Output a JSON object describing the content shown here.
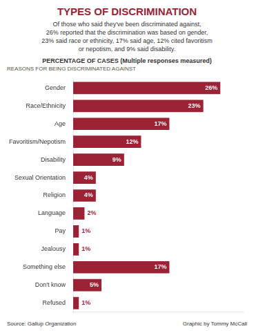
{
  "chart_data": {
    "type": "bar",
    "orientation": "horizontal",
    "title": "TYPES OF DISCRIMINATION",
    "subtitle": "Of those who said they've been discriminated against,\n26% reported that the discrimination was based on gender,\n23% said race or ethnicity, 17% said age, 12% cited favoritism\nor nepotism, and 9% said disability.",
    "ylabel": "REASONS FOR BEING DISCRIMINATED AGAINST",
    "annotations": [
      "PERCENTAGE OF CASES (Multiple responses measured)",
      "Source: Gallup Organization",
      "Graphic by Tommy McCall"
    ],
    "categories": [
      "Gender",
      "Race/Ethnicity",
      "Age",
      "Favoritism/Nepotism",
      "Disability",
      "Sexual Orientation",
      "Religion",
      "Language",
      "Pay",
      "Jealousy",
      "Something else",
      "Don't know",
      "Refused"
    ],
    "values": [
      26,
      23,
      17,
      12,
      9,
      4,
      4,
      2,
      1,
      1,
      17,
      5,
      1
    ],
    "value_labels": [
      "26%",
      "23%",
      "17%",
      "12%",
      "9%",
      "4%",
      "4%",
      "2%",
      "1%",
      "1%",
      "17%",
      "5%",
      "1%"
    ],
    "color": "#9B2335",
    "xlim": [
      0,
      30
    ],
    "grid": false,
    "tick_labels": "y",
    "data_labels": true
  }
}
